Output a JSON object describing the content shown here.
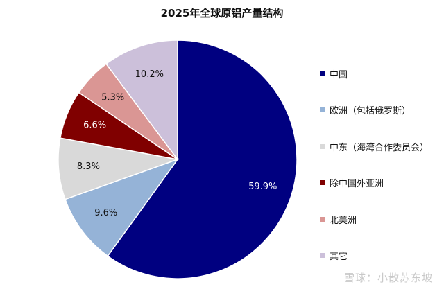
{
  "chart_data": {
    "type": "pie",
    "title": "2025年全球原铝产量结构",
    "categories": [
      "中国",
      "欧洲（包括俄罗斯）",
      "中东（海湾合作委员会）",
      "除中国外亚洲",
      "北美洲",
      "其它"
    ],
    "values": [
      59.9,
      9.6,
      8.3,
      6.6,
      5.3,
      10.2
    ],
    "labels": [
      "59.9%",
      "9.6%",
      "8.3%",
      "6.6%",
      "5.3%",
      "10.2%"
    ],
    "colors": [
      "#000080",
      "#95b3d7",
      "#d9d9d9",
      "#800000",
      "#da9694",
      "#ccc0da"
    ],
    "label_colors": [
      "#ffffff",
      "#111111",
      "#111111",
      "#ffffff",
      "#111111",
      "#111111"
    ],
    "start": "12 o'clock",
    "direction": "clockwise",
    "legend_position": "right"
  },
  "watermark": "雪球：小散苏东坡"
}
